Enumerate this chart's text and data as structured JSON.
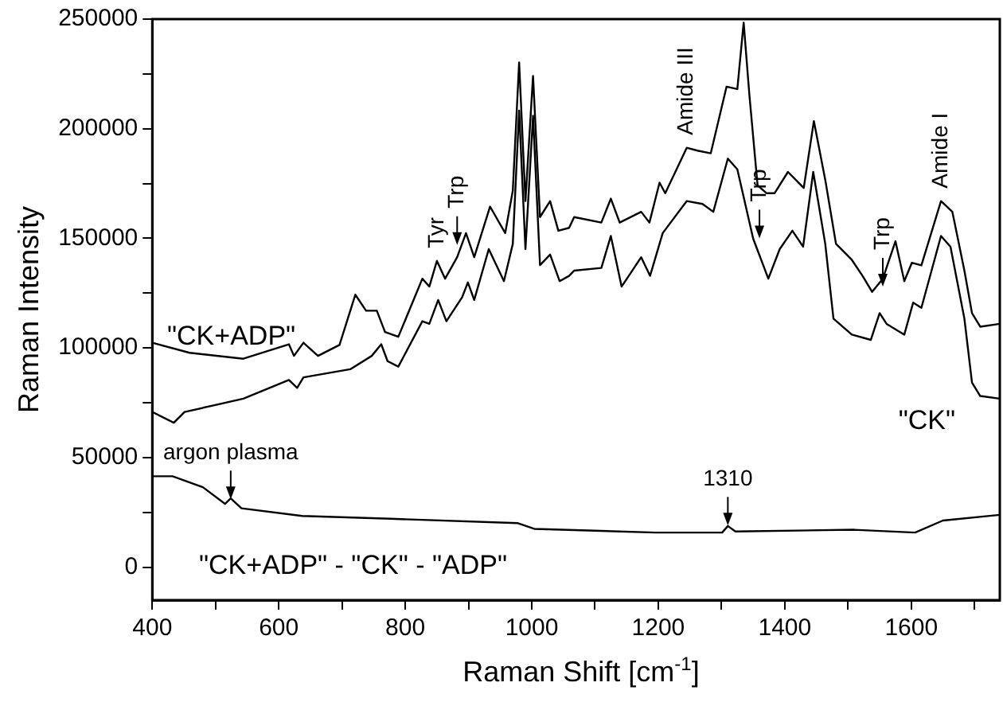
{
  "chart_data": {
    "type": "line",
    "xlabel": "Raman Shift [cm$^{-1}$]",
    "ylabel": "Raman Intensity",
    "xlim": [
      400,
      1740
    ],
    "xticks": [
      400,
      {
        "value": 500,
        "label": null
      },
      600,
      {
        "value": 700,
        "label": null
      },
      800,
      {
        "value": 900,
        "label": null
      },
      1000,
      {
        "value": 1100,
        "label": null
      },
      1200,
      {
        "value": 1300,
        "label": null
      },
      1400,
      {
        "value": 1500,
        "label": null
      },
      1600,
      {
        "value": 1700,
        "label": null
      }
    ],
    "ylim": [
      -15000,
      250000
    ],
    "yticks": [
      0,
      {
        "value": 25000,
        "label": null
      },
      50000,
      {
        "value": 75000,
        "label": null
      },
      100000,
      {
        "value": 125000,
        "label": null
      },
      150000,
      {
        "value": 175000,
        "label": null
      },
      200000,
      {
        "value": 225000,
        "label": null
      },
      250000
    ],
    "grid": false,
    "legend": false,
    "marker": "none",
    "line_style": "solid",
    "series": [
      {
        "name": "\"CK+ADP\"",
        "color": "#000000",
        "x": [
          400,
          459,
          544,
          616,
          624,
          639,
          662,
          696,
          721,
          738,
          755,
          768,
          789,
          827,
          838,
          850,
          863,
          882,
          896,
          909,
          934,
          958,
          970,
          980,
          990,
          1002,
          1013,
          1029,
          1042,
          1059,
          1067,
          1110,
          1125,
          1139,
          1173,
          1186,
          1202,
          1211,
          1245,
          1262,
          1283,
          1308,
          1325,
          1335,
          1344,
          1357,
          1371,
          1384,
          1405,
          1430,
          1446,
          1464,
          1481,
          1506,
          1523,
          1538,
          1555,
          1575,
          1589,
          1601,
          1616,
          1647,
          1665,
          1684,
          1696,
          1709,
          1740
        ],
        "values": [
          102400,
          97800,
          95100,
          101700,
          96400,
          102400,
          96400,
          101400,
          124300,
          117000,
          117000,
          107300,
          105100,
          131600,
          128000,
          139700,
          131600,
          141400,
          152400,
          141400,
          164500,
          152400,
          171800,
          230200,
          167000,
          224100,
          159700,
          167000,
          153500,
          154800,
          159700,
          157200,
          168100,
          157200,
          162100,
          157200,
          175400,
          170600,
          191300,
          190000,
          188800,
          219200,
          218100,
          248400,
          215600,
          174200,
          170600,
          170600,
          180300,
          173000,
          203500,
          176700,
          147500,
          140200,
          132900,
          125600,
          131600,
          148700,
          130500,
          138900,
          137700,
          167000,
          162100,
          135300,
          115900,
          109700,
          111000
        ]
      },
      {
        "name": "\"CK\"",
        "color": "#000000",
        "x": [
          400,
          434,
          451,
          544,
          616,
          629,
          639,
          713,
          747,
          762,
          772,
          789,
          827,
          838,
          852,
          865,
          890,
          899,
          909,
          932,
          956,
          970,
          980,
          990,
          1002,
          1013,
          1029,
          1044,
          1059,
          1067,
          1110,
          1125,
          1142,
          1173,
          1187,
          1207,
          1245,
          1270,
          1287,
          1310,
          1325,
          1350,
          1374,
          1392,
          1412,
          1429,
          1445,
          1464,
          1477,
          1506,
          1536,
          1550,
          1561,
          1589,
          1603,
          1616,
          1647,
          1662,
          1684,
          1696,
          1709,
          1740
        ],
        "values": [
          70800,
          65900,
          70800,
          76900,
          85400,
          81800,
          86600,
          90300,
          96400,
          101700,
          94000,
          91500,
          112200,
          111000,
          121900,
          112200,
          123200,
          129900,
          121900,
          145100,
          130500,
          147500,
          208300,
          145100,
          205900,
          137800,
          142600,
          130500,
          132900,
          135300,
          136500,
          151100,
          128000,
          141400,
          132900,
          152400,
          167000,
          165700,
          162100,
          186400,
          181500,
          149900,
          131600,
          145100,
          153500,
          146200,
          180300,
          147500,
          113400,
          106100,
          103700,
          115900,
          111000,
          106100,
          120700,
          118300,
          151100,
          146200,
          113400,
          84200,
          78100,
          76900
        ]
      },
      {
        "name": "\"CK+ADP\" - \"CK\" - \"ADP\"",
        "color": "#000000",
        "x": [
          400,
          432,
          480,
          515,
          524,
          541,
          637,
          777,
          978,
          1004,
          1196,
          1301,
          1310,
          1322,
          1510,
          1606,
          1650,
          1740
        ],
        "values": [
          41500,
          41500,
          36500,
          28900,
          31400,
          26900,
          23400,
          22100,
          20100,
          17500,
          15800,
          15800,
          18800,
          16300,
          17100,
          15800,
          21300,
          23900
        ]
      }
    ],
    "annotations": [
      {
        "text": "Tyr",
        "x": 850,
        "y": 139700
      },
      {
        "text": "Trp",
        "x": 882,
        "y": 147000
      },
      {
        "text": "Amide III",
        "x": 1245,
        "y": 191300
      },
      {
        "text": "Trp",
        "x": 1360,
        "y": 150000
      },
      {
        "text": "Trp",
        "x": 1555,
        "y": 128000
      },
      {
        "text": "Amide I",
        "x": 1647,
        "y": 167000
      },
      {
        "text": "argon plasma",
        "x": 524,
        "y": 31000
      },
      {
        "text": "1310",
        "x": 1310,
        "y": 19000
      }
    ]
  }
}
